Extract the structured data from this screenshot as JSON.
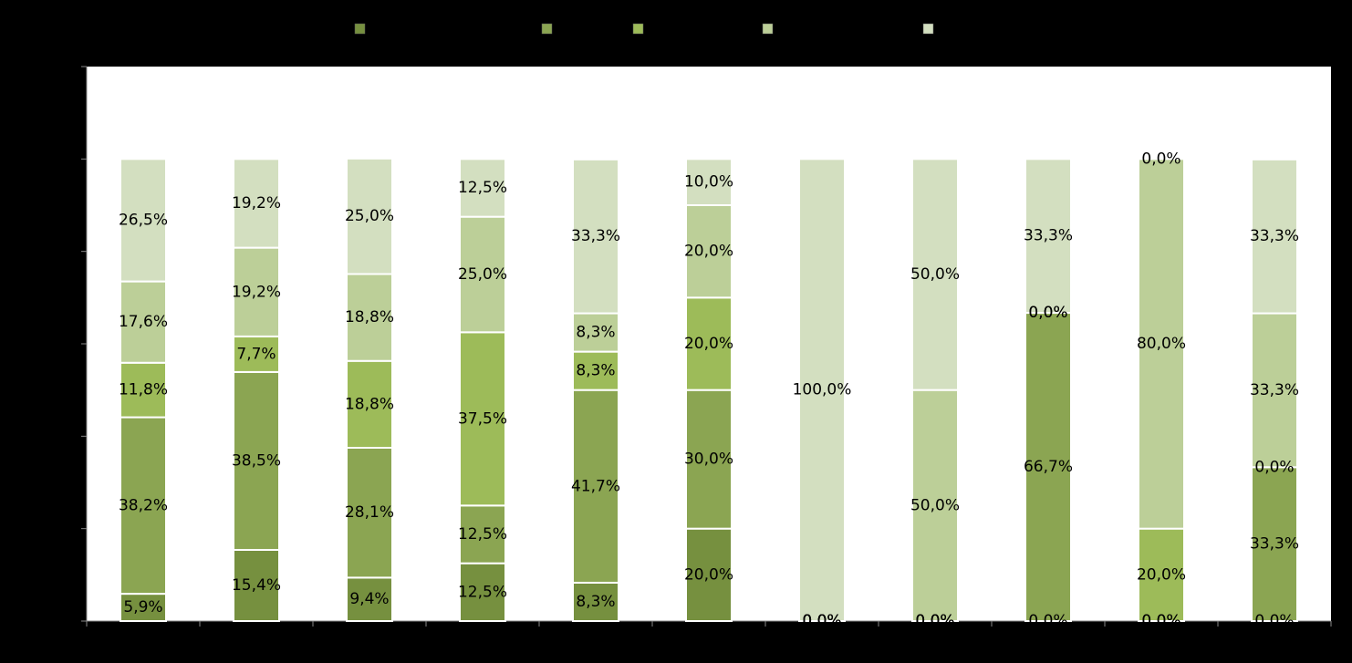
{
  "chart_data": {
    "type": "stacked_bar",
    "categories": [
      null,
      null,
      null,
      null,
      null,
      null,
      null,
      null,
      null,
      null,
      null
    ],
    "ylim": [
      0,
      120
    ],
    "yticks": [
      0,
      20,
      40,
      60,
      80,
      100,
      120
    ],
    "series": [
      {
        "color": "#76903f",
        "values": [
          5.9,
          15.4,
          9.4,
          12.5,
          8.3,
          20.0,
          0,
          0,
          0,
          0,
          0
        ],
        "value_labels": [
          "5,9%",
          "15,4%",
          "9,4%",
          "12,5%",
          "8,3%",
          "20,0%",
          "0,0%",
          "0,0%",
          "0,0%",
          "0,0%",
          "0,0%"
        ]
      },
      {
        "color": "#8ba552",
        "values": [
          38.2,
          38.5,
          28.1,
          12.5,
          41.7,
          30.0,
          0,
          0,
          66.7,
          0,
          33.3
        ],
        "value_labels": [
          "38,2%",
          "38,5%",
          "28,1%",
          "12,5%",
          "41,7%",
          "30,0%",
          "0,0%",
          "0,0%",
          "66,7%",
          "0,0%",
          "33,3%"
        ]
      },
      {
        "color": "#9dbb59",
        "values": [
          11.8,
          7.7,
          18.8,
          37.5,
          8.3,
          20.0,
          0,
          0,
          0,
          20.0,
          0
        ],
        "value_labels": [
          "11,8%",
          "7,7%",
          "18,8%",
          "37,5%",
          "8,3%",
          "20,0%",
          "0,0%",
          "0,0%",
          "0,0%",
          "20,0%",
          "0,0%"
        ]
      },
      {
        "color": "#bccf98",
        "values": [
          17.6,
          19.2,
          18.8,
          25.0,
          8.3,
          20.0,
          0,
          50.0,
          0,
          80.0,
          33.3
        ],
        "value_labels": [
          "17,6%",
          "19,2%",
          "18,8%",
          "25,0%",
          "8,3%",
          "20,0%",
          "0,0%",
          "50,0%",
          "0,0%",
          "80,0%",
          "33,3%"
        ]
      },
      {
        "color": "#d3dfc0",
        "values": [
          26.5,
          19.2,
          25.0,
          12.5,
          33.3,
          10.0,
          100.0,
          50.0,
          33.3,
          0,
          33.3
        ],
        "value_labels": [
          "26,5%",
          "19,2%",
          "25,0%",
          "12,5%",
          "33,3%",
          "10,0%",
          "100,0%",
          "50,0%",
          "33,3%",
          "0,0%",
          "33,3%"
        ]
      }
    ]
  }
}
